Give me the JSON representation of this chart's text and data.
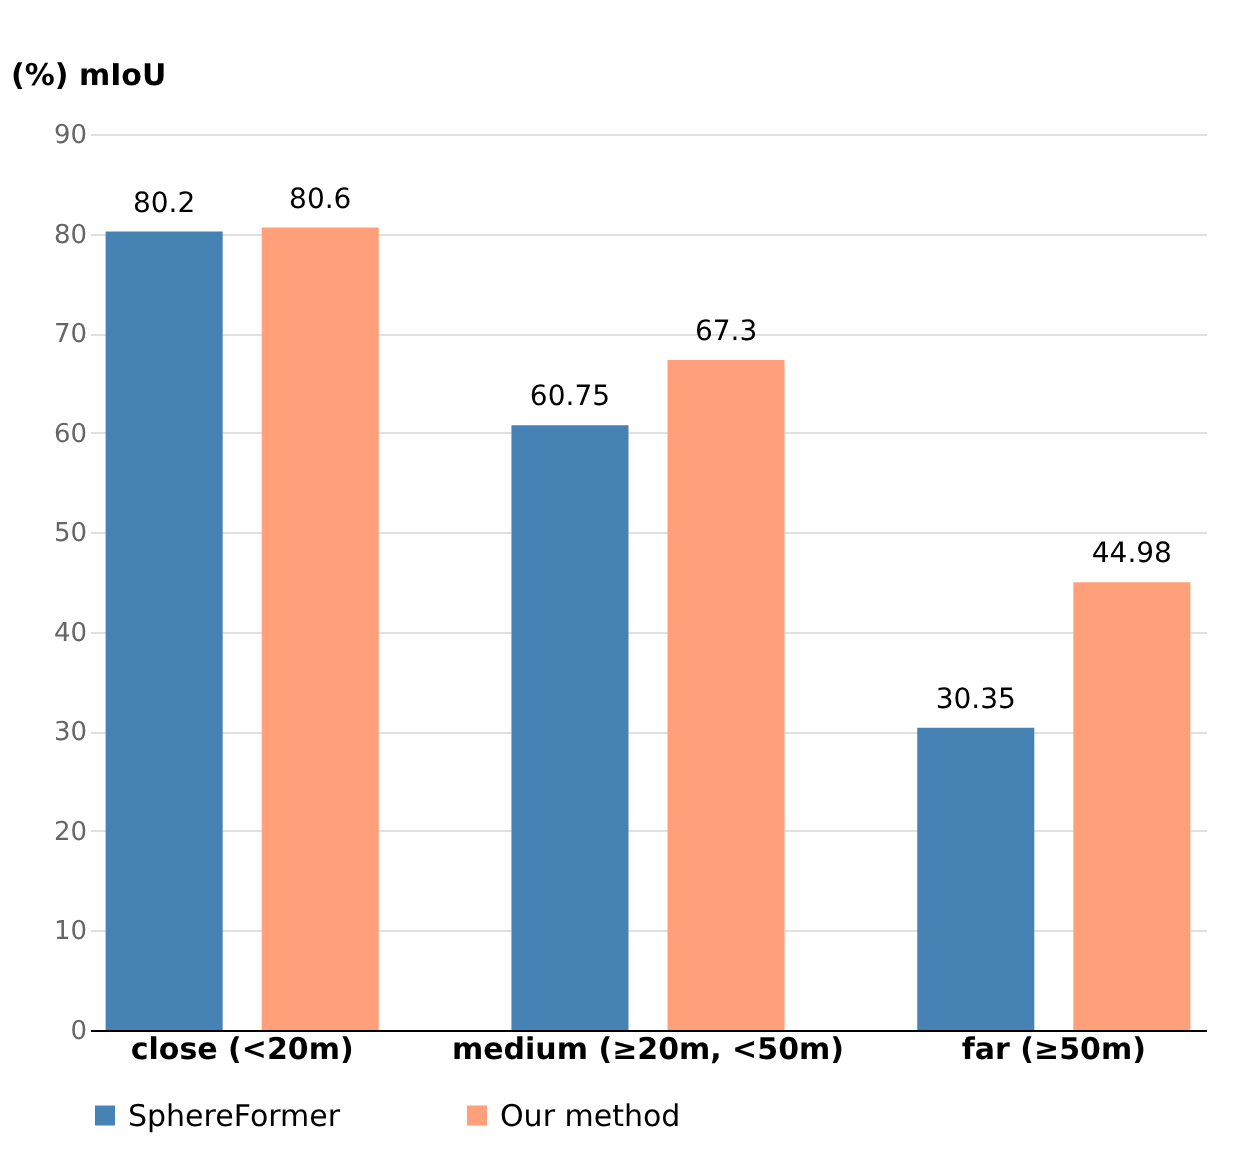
{
  "chart_data": {
    "type": "bar",
    "ylabel": "(%) mIoU",
    "categories": [
      "close (<20m)",
      "medium (≥20m, <50m)",
      "far (≥50m)"
    ],
    "series": [
      {
        "name": "SphereFormer",
        "color": "#4682b4",
        "values": [
          80.2,
          60.75,
          30.35
        ]
      },
      {
        "name": "Our method",
        "color": "#ffa07a",
        "values": [
          80.6,
          67.3,
          44.98
        ]
      }
    ],
    "ylim": [
      0,
      90
    ],
    "yticks": [
      0,
      10,
      20,
      30,
      40,
      50,
      60,
      70,
      80,
      90
    ],
    "grid": "y",
    "legend": "bottom",
    "data_labels": true
  }
}
